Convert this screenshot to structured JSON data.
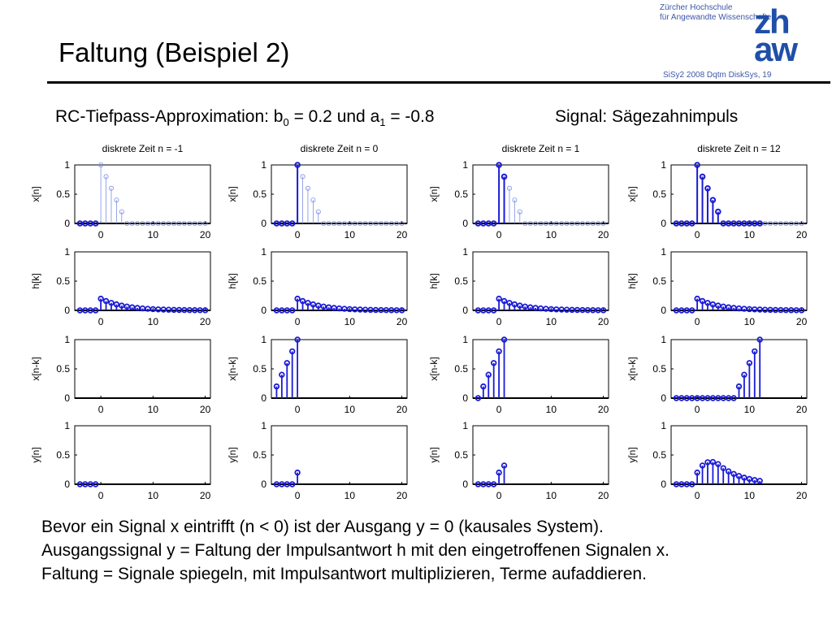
{
  "slide": {
    "title": "Faltung (Beispiel 2)",
    "brand_line1": "Zürcher Hochschule",
    "brand_line2": "für Angewandte Wissenschaften",
    "logo_line1": "zh",
    "logo_line2": "aw",
    "slide_ref": "SiSy2 2008 Dqtm DiskSys, 19",
    "subtitle": {
      "prefix": "RC-Tiefpass-Approximation: b",
      "b_sub": "0",
      "middle": " = 0.2 und a",
      "a_sub": "1",
      "suffix": " = -0.8",
      "signal": "Signal: Sägezahnimpuls"
    },
    "notes": [
      "Bevor ein Signal x eintrifft (n < 0) ist der Ausgang y = 0 (kausales System).",
      "Ausgangssignal y = Faltung der Impulsantwort h mit den eingetroffenen Signalen x.",
      "Faltung = Signale spiegeln, mit Impulsantwort multiplizieren, Terme aufaddieren."
    ]
  },
  "chart_data": {
    "type": "stem",
    "columns": [
      {
        "title": "diskrete Zeit n = -1",
        "n": -1
      },
      {
        "title": "diskrete Zeit n = 0",
        "n": 0
      },
      {
        "title": "diskrete Zeit n = 1",
        "n": 1
      },
      {
        "title": "diskrete Zeit n = 12",
        "n": 12
      }
    ],
    "row_labels": [
      "x[n]",
      "h[k]",
      "x[n-k]",
      "y[n]"
    ],
    "x_ticks": [
      "0",
      "10",
      "20"
    ],
    "y_ticks": [
      "0",
      "0.5",
      "1"
    ],
    "xlim": [
      -5,
      21
    ],
    "ylim": [
      0,
      1
    ],
    "sawtooth": [
      1.0,
      0.8,
      0.6,
      0.4,
      0.2
    ],
    "h_b0": 0.2,
    "h_a1": -0.8
  }
}
